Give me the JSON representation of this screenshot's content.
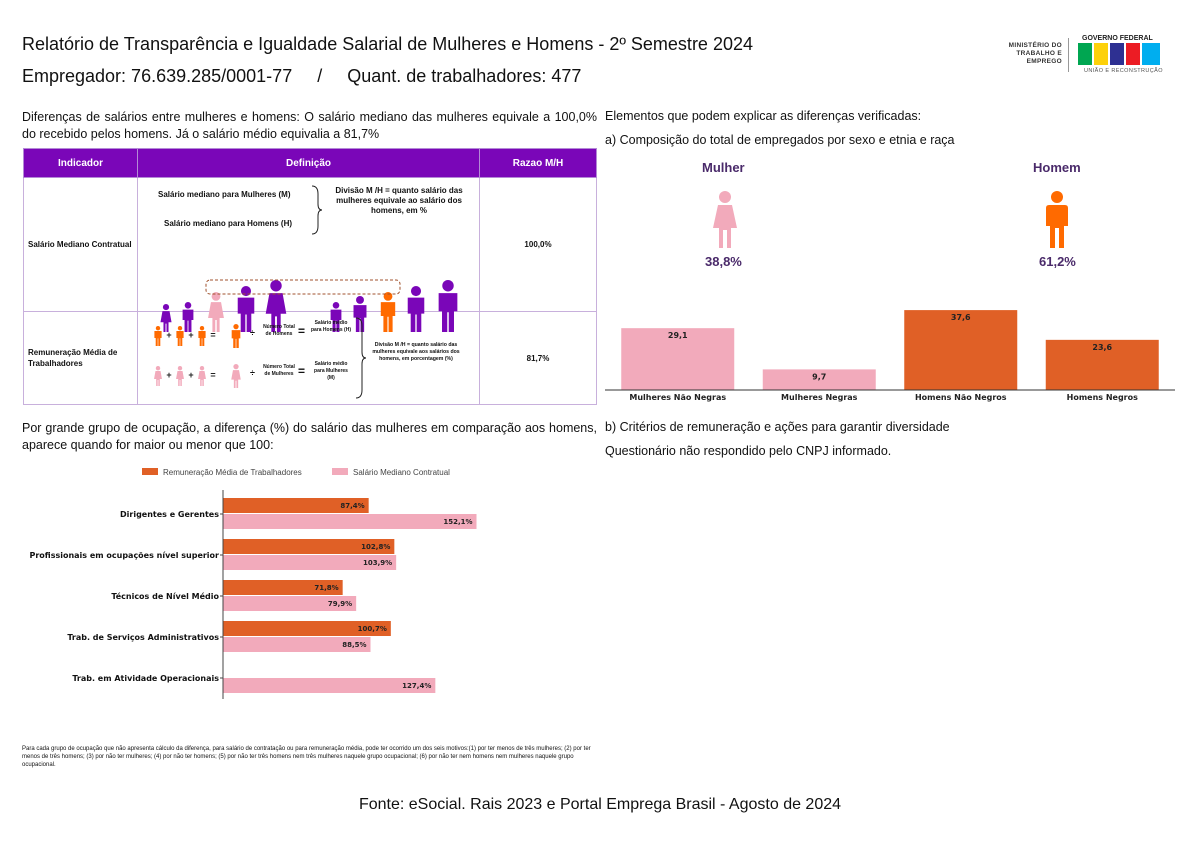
{
  "header": {
    "title": "Relatório de Transparência e Igualdade Salarial de Mulheres e Homens - 2º Semestre 2024",
    "subtitle": "Empregador: 76.639.285/0001-77     /     Quant. de trabalhadores: 477"
  },
  "logos": {
    "ministry": "MINISTÉRIO DO TRABALHO E EMPREGO",
    "gov": "GOVERNO FEDERAL",
    "union": "UNIÃO E RECONSTRUÇÃO",
    "colors": [
      "#00a651",
      "#fdd10a",
      "#2e3092",
      "#ec1c24",
      "#00aeef"
    ]
  },
  "intro": "Diferenças de salários entre mulheres e homens: O salário mediano das mulheres equivale a 100,0% do recebido pelos homens. Já o salário médio equivalia a 81,7%",
  "table": {
    "headers": [
      "Indicador",
      "Definição",
      "Razao M/H"
    ],
    "rows": [
      {
        "indicator": "Salário Mediano Contratual",
        "ratio": "100,0%",
        "def_women": "Salário mediano para Mulheres (M)",
        "def_men": "Salário mediano para Homens (H)",
        "def_division": "Divisão M /H = quanto salário das mulheres equivale ao salário dos homens, em %"
      },
      {
        "indicator": "Remuneração Média de Trabalhadores",
        "ratio": "81,7%",
        "def_total_men": "Número Total de Homens",
        "def_total_women": "Número Total de Mulheres",
        "def_mean_men": "Salário médio para Homens (H)",
        "def_mean_women": "Salário médio para Mulheres (M)",
        "def_division": "Divisão M /H = quanto salário das mulheres equivale aos salários dos homens, em porcentagem (%)",
        "plus": "+",
        "divide": "÷",
        "equals": "="
      }
    ]
  },
  "right": {
    "title": "Elementos que podem explicar as diferenças verificadas:",
    "subtitle_a": "a) Composição do total de empregados por sexo e etnia e raça",
    "women_label": "Mulher",
    "men_label": "Homem",
    "women_pct": "38,8%",
    "men_pct": "61,2%",
    "subtitle_b": "b) Critérios de remuneração e ações para garantir diversidade",
    "no_answer": "Questionário não respondido pelo CNPJ informado."
  },
  "bottom": {
    "title": "Por grande grupo de ocupação, a diferença (%) do salário das mulheres em comparação aos homens, aparece quando for maior ou menor que 100:",
    "footnote": "Para cada grupo de ocupação que não apresenta cálculo da diferença, para salário de contratação ou para remuneração média, pode ter ocorrido um dos seis motivos:(1) por ter menos de três mulheres; (2) por ter menos de três homens; (3) por não ter mulheres; (4) por não ter homens; (5) por não ter três homens nem três mulheres naquele grupo ocupacional; (6) por não ter nem homens nem mulheres naquele grupo ocupacional.",
    "source": "Fonte: eSocial. Rais 2023 e Portal Emprega Brasil - Agosto de 2024"
  },
  "chart_data": [
    {
      "type": "bar",
      "categories": [
        "Mulheres Não Negras",
        "Mulheres Negras",
        "Homens Não Negros",
        "Homens Negros"
      ],
      "values": [
        29.1,
        9.7,
        37.6,
        23.6
      ],
      "labels": [
        "29,1",
        "9,7",
        "37,6",
        "23,6"
      ],
      "colors": [
        "#f2aabb",
        "#f2aabb",
        "#e06026",
        "#e06026"
      ],
      "ylim": [
        0,
        40
      ]
    },
    {
      "type": "bar",
      "orientation": "horizontal",
      "categories": [
        "Dirigentes e Gerentes",
        "Profissionais em ocupações nível superior",
        "Técnicos de Nível Médio",
        "Trab. de Serviços Administrativos",
        "Trab. em Atividade Operacionais"
      ],
      "series": [
        {
          "name": "Remuneração Média de Trabalhadores",
          "color": "#e06026",
          "values": [
            87.4,
            102.8,
            71.8,
            100.7,
            null
          ],
          "labels": [
            "87,4%",
            "102,8%",
            "71,8%",
            "100,7%",
            ""
          ]
        },
        {
          "name": "Salário Mediano Contratual",
          "color": "#f2aabb",
          "values": [
            152.1,
            103.9,
            79.9,
            88.5,
            127.4
          ],
          "labels": [
            "152,1%",
            "103,9%",
            "79,9%",
            "88,5%",
            "127,4%"
          ]
        }
      ],
      "xlim": [
        0,
        180
      ],
      "legend": "top"
    }
  ]
}
